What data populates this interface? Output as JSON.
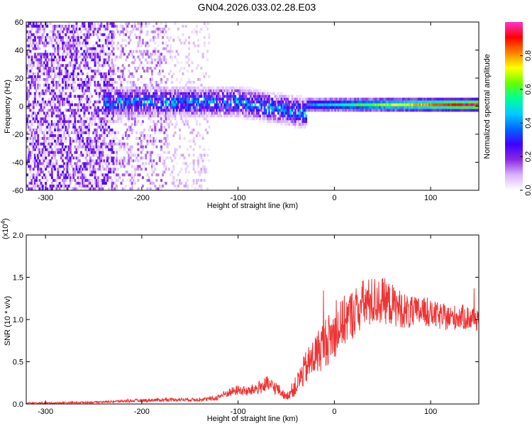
{
  "title": "GN04.2026.033.02.28.E03",
  "chart_data": [
    {
      "type": "heatmap",
      "xlabel": "Height of straight line (km)",
      "ylabel": "Frequency (Hz)",
      "xlim": [
        -320,
        150
      ],
      "ylim": [
        -60,
        60
      ],
      "x_ticks": [
        -300,
        -200,
        -100,
        0,
        100
      ],
      "y_ticks": [
        -60,
        -40,
        -20,
        0,
        20,
        40,
        60
      ],
      "colorbar": {
        "label": "Normalized spectral amplitude",
        "range": [
          0,
          1
        ],
        "ticks": [
          0.0,
          0.2,
          0.4,
          0.6,
          0.8
        ],
        "tick_labels": [
          "0.0",
          "0.2",
          "0.4",
          "0.6",
          "0.8"
        ],
        "colormap": [
          "#ffffff",
          "#d9b3ff",
          "#8a2be2",
          "#4000ff",
          "#0066ff",
          "#00ccff",
          "#00ff99",
          "#66ff00",
          "#ffff00",
          "#ff8000",
          "#ff0000",
          "#ff33cc"
        ]
      },
      "regions": [
        {
          "x_range": [
            -320,
            -130
          ],
          "freq_spread": 60,
          "amplitude": 0.08
        },
        {
          "x_range": [
            -240,
            -30
          ],
          "freq_center": 2,
          "freq_spread": 12,
          "amplitude": 0.35
        },
        {
          "x_range": [
            -30,
            150
          ],
          "freq_center": 0,
          "freq_spread": 5,
          "amplitude": 0.9
        }
      ]
    },
    {
      "type": "line",
      "xlabel": "Height of straight line (km)",
      "ylabel": "SNR (10 * v/v)",
      "yscale_label": "(x10",
      "yscale_exponent": "4",
      "yscale_close": ")",
      "xlim": [
        -320,
        150
      ],
      "ylim": [
        0,
        2.0
      ],
      "x_ticks": [
        -300,
        -200,
        -100,
        0,
        100
      ],
      "y_ticks": [
        0.0,
        0.5,
        1.0,
        1.5,
        2.0
      ],
      "y_tick_labels": [
        "0.0",
        "0.5",
        "1.0",
        "1.5",
        "2.0"
      ],
      "color": "#ee3333",
      "x": [
        -320,
        -300,
        -250,
        -200,
        -170,
        -140,
        -125,
        -110,
        -100,
        -90,
        -80,
        -70,
        -60,
        -50,
        -40,
        -30,
        -20,
        -10,
        0,
        10,
        20,
        30,
        40,
        50,
        60,
        70,
        80,
        90,
        100,
        110,
        120,
        130,
        140,
        150
      ],
      "y": [
        0.01,
        0.01,
        0.02,
        0.04,
        0.05,
        0.05,
        0.06,
        0.13,
        0.16,
        0.14,
        0.18,
        0.22,
        0.18,
        0.08,
        0.2,
        0.4,
        0.55,
        0.7,
        0.8,
        0.95,
        1.05,
        1.15,
        1.18,
        1.2,
        1.15,
        1.1,
        1.05,
        1.08,
        1.05,
        1.02,
        1.0,
        1.02,
        1.0,
        1.0
      ],
      "noise": [
        0.01,
        0.01,
        0.01,
        0.02,
        0.02,
        0.02,
        0.03,
        0.05,
        0.06,
        0.06,
        0.08,
        0.1,
        0.08,
        0.04,
        0.12,
        0.2,
        0.25,
        0.3,
        0.3,
        0.3,
        0.3,
        0.3,
        0.3,
        0.28,
        0.25,
        0.22,
        0.2,
        0.18,
        0.16,
        0.16,
        0.15,
        0.15,
        0.15,
        0.15
      ]
    }
  ]
}
